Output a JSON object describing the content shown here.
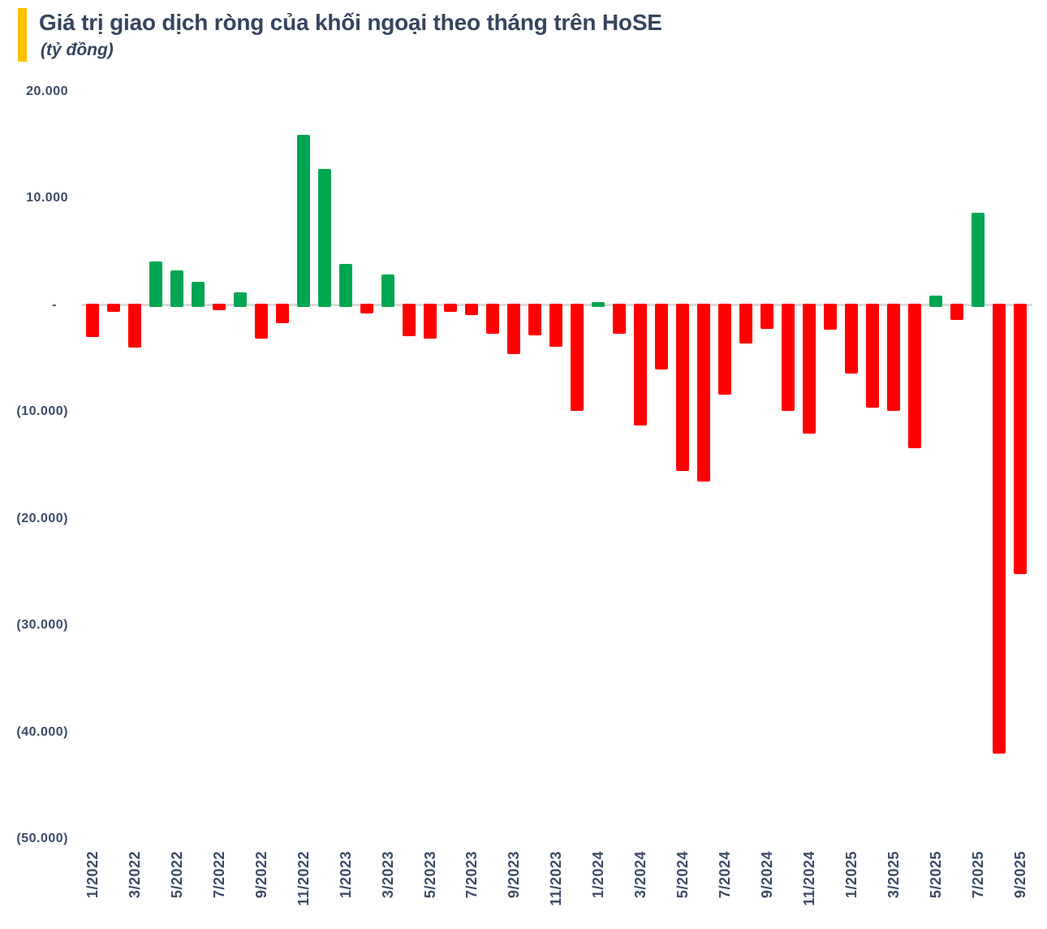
{
  "header": {
    "title": "Giá trị giao dịch ròng của khối ngoại theo tháng trên HoSE",
    "subtitle": "(tỷ đồng)",
    "accent_color": "#FFC000"
  },
  "chart_data": {
    "type": "bar",
    "title": "Giá trị giao dịch ròng của khối ngoại theo tháng trên HoSE",
    "ylabel": "tỷ đồng",
    "xlabel": "",
    "grid": false,
    "legend_position": "none",
    "ylim": [
      -50000,
      20000
    ],
    "x": [
      "1/2022",
      "2/2022",
      "3/2022",
      "4/2022",
      "5/2022",
      "6/2022",
      "7/2022",
      "8/2022",
      "9/2022",
      "10/2022",
      "11/2022",
      "12/2022",
      "1/2023",
      "2/2023",
      "3/2023",
      "4/2023",
      "5/2023",
      "6/2023",
      "7/2023",
      "8/2023",
      "9/2023",
      "10/2023",
      "11/2023",
      "12/2023",
      "1/2024",
      "2/2024",
      "3/2024",
      "4/2024",
      "5/2024",
      "6/2024",
      "7/2024",
      "8/2024",
      "9/2024",
      "10/2024",
      "11/2024",
      "12/2024",
      "1/2025",
      "2/2025",
      "3/2025",
      "4/2025",
      "5/2025",
      "6/2025",
      "7/2025",
      "8/2025",
      "9/2025"
    ],
    "values": [
      -3000,
      -600,
      -4000,
      4100,
      3250,
      2200,
      -500,
      1200,
      -3100,
      -1700,
      16000,
      12800,
      3900,
      -800,
      2900,
      -2900,
      -3100,
      -600,
      -900,
      -2700,
      -4600,
      -2800,
      -3900,
      -9900,
      300,
      -2700,
      -11300,
      -6000,
      -15500,
      -16500,
      -8400,
      -3600,
      -2200,
      -9900,
      -12000,
      -2300,
      -6400,
      -9600,
      -9900,
      -13400,
      900,
      -1400,
      8700,
      -42000,
      -25200
    ],
    "x_tick_labels": [
      "1/2022",
      "3/2022",
      "5/2022",
      "7/2022",
      "9/2022",
      "11/2022",
      "1/2023",
      "3/2023",
      "5/2023",
      "7/2023",
      "9/2023",
      "11/2023",
      "1/2024",
      "3/2024",
      "5/2024",
      "7/2024",
      "9/2024",
      "11/2024",
      "1/2025",
      "3/2025",
      "5/2025",
      "7/2025",
      "9/2025"
    ],
    "y_ticks": [
      {
        "value": 20000,
        "label": "20.000"
      },
      {
        "value": 10000,
        "label": "10.000"
      },
      {
        "value": 0,
        "label": "-"
      },
      {
        "value": -10000,
        "label": "(10.000)"
      },
      {
        "value": -20000,
        "label": "(20.000)"
      },
      {
        "value": -30000,
        "label": "(30.000)"
      },
      {
        "value": -40000,
        "label": "(40.000)"
      },
      {
        "value": -50000,
        "label": "(50.000)"
      }
    ],
    "colors": {
      "positive": "#00A651",
      "negative": "#FF0000",
      "axis_line": "#D9D9D9",
      "label": "#3C4B66",
      "title": "#36455E"
    }
  }
}
